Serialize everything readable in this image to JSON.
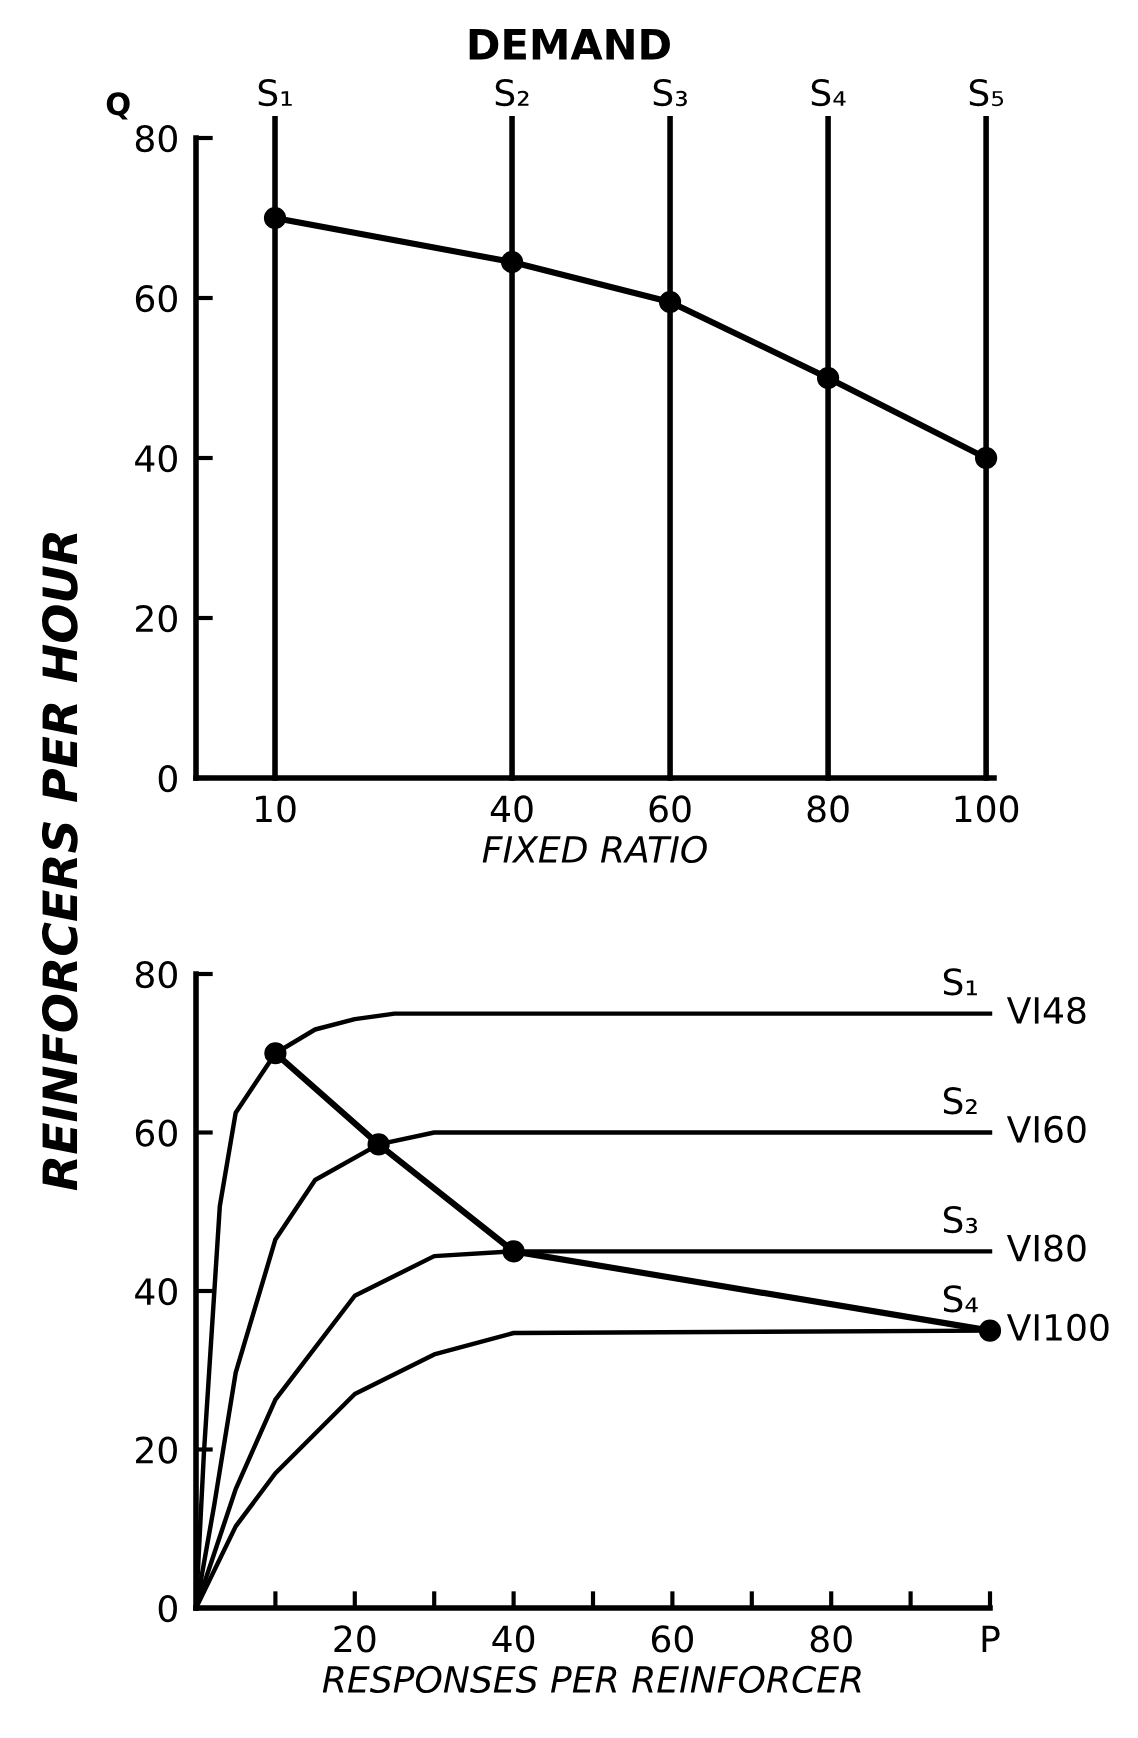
{
  "chart_data": [
    {
      "type": "line",
      "title": "DEMAND",
      "xlabel": "FIXED RATIO",
      "annotations": [
        "Q"
      ],
      "x": [
        10,
        40,
        60,
        80,
        100
      ],
      "values": [
        70,
        64.5,
        59.5,
        50,
        40
      ],
      "color": "#000000",
      "marker": "circle",
      "line_style": "solid",
      "xlim": [
        0,
        101
      ],
      "xticks": [
        10,
        40,
        60,
        80,
        100
      ],
      "ylim": [
        0,
        80
      ],
      "yticks": [
        0,
        20,
        40,
        60,
        80
      ],
      "grid": false,
      "ref_lines": [
        {
          "axis": "x",
          "value": 10,
          "label": "S₁",
          "color": "#000000"
        },
        {
          "axis": "x",
          "value": 40,
          "label": "S₂",
          "color": "#000000"
        },
        {
          "axis": "x",
          "value": 60,
          "label": "S₃",
          "color": "#000000"
        },
        {
          "axis": "x",
          "value": 80,
          "label": "S₄",
          "color": "#000000"
        },
        {
          "axis": "x",
          "value": 100,
          "label": "S₅",
          "color": "#000000"
        }
      ]
    },
    {
      "type": "line",
      "xlabel": "RESPONSES PER REINFORCER",
      "ylabel": "REINFORCERS PER HOUR",
      "xlim": [
        0,
        100
      ],
      "xticks": [
        {
          "value": 10,
          "label": null
        },
        20,
        {
          "value": 30,
          "label": null
        },
        40,
        {
          "value": 50,
          "label": null
        },
        60,
        {
          "value": 70,
          "label": null
        },
        80,
        {
          "value": 90,
          "label": null
        },
        {
          "value": 100,
          "label": "P"
        }
      ],
      "ylim": [
        0,
        80
      ],
      "yticks": [
        0,
        20,
        40,
        60,
        80
      ],
      "grid": false,
      "series": [
        {
          "color": "#000000",
          "marker": "circle",
          "x": [
            10,
            23,
            40,
            100
          ],
          "values": [
            70,
            58.5,
            45,
            35
          ]
        },
        {
          "name": "S₁",
          "color": "#000000",
          "marker": "none",
          "x": [
            0,
            1,
            3,
            5,
            10,
            15,
            20,
            25,
            100
          ],
          "values": [
            0,
            19.6,
            50.7,
            62.5,
            70,
            73,
            74.3,
            75,
            75
          ]
        },
        {
          "name": "S₂",
          "color": "#000000",
          "marker": "none",
          "x": [
            0,
            2.3,
            5,
            10,
            15,
            23,
            30,
            100
          ],
          "values": [
            0,
            13,
            29.7,
            46.5,
            54,
            58.5,
            60,
            60
          ]
        },
        {
          "name": "S₃",
          "color": "#000000",
          "marker": "none",
          "x": [
            0,
            5,
            10,
            20,
            30,
            40,
            100
          ],
          "values": [
            0,
            15,
            26.3,
            39.4,
            44.4,
            45,
            45
          ]
        },
        {
          "name": "S₄",
          "color": "#000000",
          "marker": "none",
          "x": [
            0,
            5,
            10,
            20,
            30,
            40,
            100
          ],
          "values": [
            0,
            10.3,
            17,
            27,
            32,
            34.7,
            35
          ]
        }
      ],
      "annotations": [
        "VI48",
        "VI60",
        "VI80",
        "VI100"
      ]
    }
  ]
}
